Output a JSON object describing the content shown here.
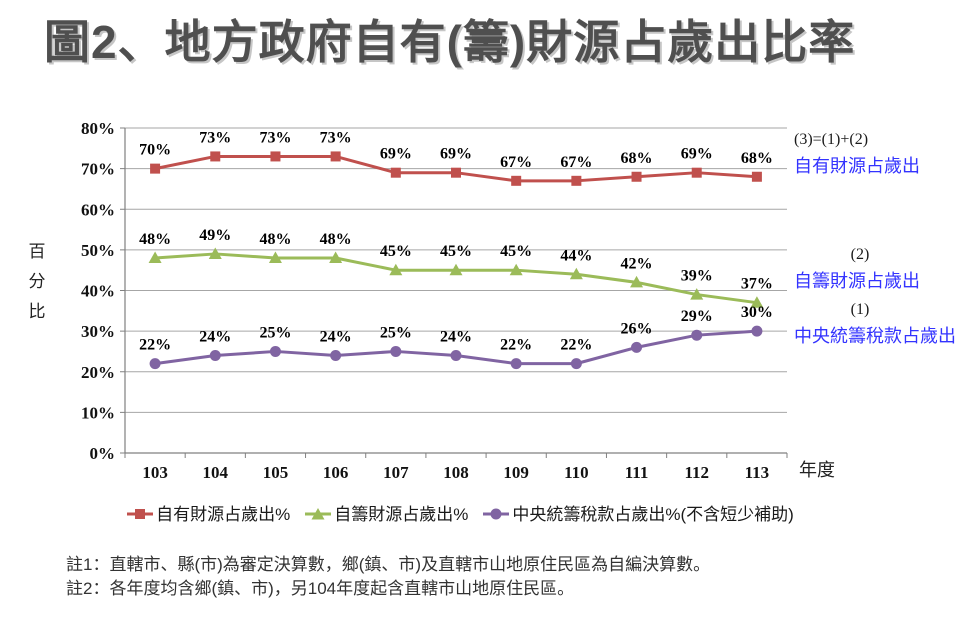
{
  "title": "圖2、地方政府自有(籌)財源占歲出比率",
  "chart_data": {
    "type": "line",
    "categories": [
      "103",
      "104",
      "105",
      "106",
      "107",
      "108",
      "109",
      "110",
      "111",
      "112",
      "113"
    ],
    "series": [
      {
        "name": "自有財源占歲出%",
        "marker": "square",
        "color": "#C0504D",
        "values": [
          70,
          73,
          73,
          73,
          69,
          69,
          67,
          67,
          68,
          69,
          68
        ]
      },
      {
        "name": "自籌財源占歲出%",
        "marker": "triangle",
        "color": "#9BBB59",
        "values": [
          48,
          49,
          48,
          48,
          45,
          45,
          45,
          44,
          42,
          39,
          37
        ]
      },
      {
        "name": "中央統籌稅款占歲出%(不含短少補助)",
        "marker": "circle",
        "color": "#8064A2",
        "values": [
          22,
          24,
          25,
          24,
          25,
          24,
          22,
          22,
          26,
          29,
          30
        ]
      }
    ],
    "ylabel": "百分比",
    "xlabel": "年度",
    "ylim": [
      0,
      80
    ],
    "ytick_step": 10,
    "yticks": [
      "0%",
      "10%",
      "20%",
      "30%",
      "40%",
      "50%",
      "60%",
      "70%",
      "80%"
    ],
    "grid": true,
    "legend_position": "bottom",
    "data_labels": true,
    "data_label_suffix": "%"
  },
  "annotations": [
    {
      "formula": "(3)=(1)+(2)",
      "label": "自有財源占歲出"
    },
    {
      "formula": "(2)",
      "label": "自籌財源占歲出"
    },
    {
      "formula": "(1)",
      "label": "中央統籌稅款占歲出"
    }
  ],
  "notes": [
    "註1：直轄市、縣(市)為審定決算數，鄉(鎮、市)及直轄市山地原住民區為自編決算數。",
    "註2：各年度均含鄉(鎮、市)，另104年度起含直轄市山地原住民區。"
  ],
  "colors": {
    "annotation_blue": "#3333FF",
    "grid": "#A6A6A6",
    "axis": "#808080",
    "title_gray": "#4F4F4F"
  }
}
